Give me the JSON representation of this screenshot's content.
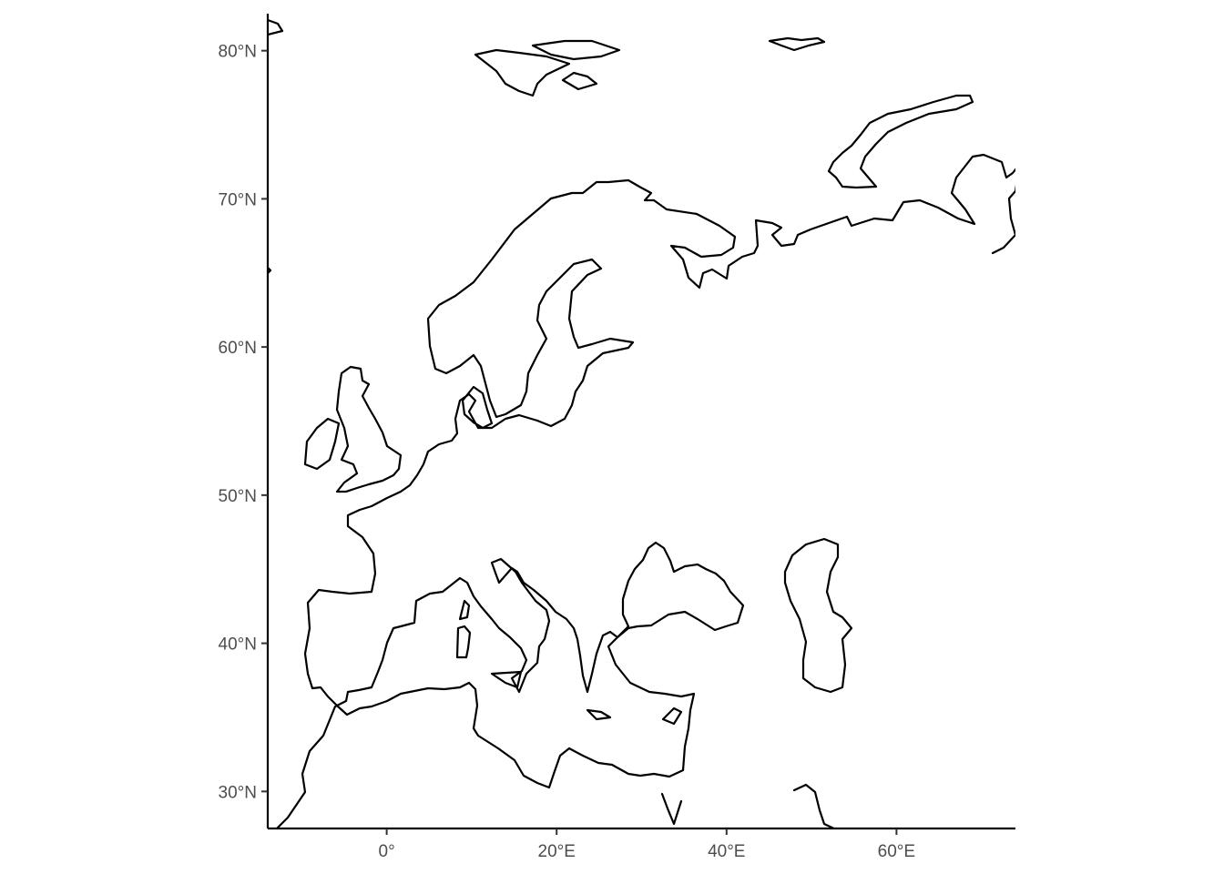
{
  "map": {
    "projection": "equirectangular",
    "coastline_color": "#000000",
    "background": "#ffffff",
    "lon_range": [
      -14.0,
      74.0
    ],
    "lat_range": [
      27.5,
      82.5
    ],
    "x_axis": {
      "ticks": [
        {
          "value": 0,
          "label": "0°"
        },
        {
          "value": 20,
          "label": "20°E"
        },
        {
          "value": 40,
          "label": "40°E"
        },
        {
          "value": 60,
          "label": "60°E"
        }
      ]
    },
    "y_axis": {
      "ticks": [
        {
          "value": 30,
          "label": "30°N"
        },
        {
          "value": 40,
          "label": "40°N"
        },
        {
          "value": 50,
          "label": "50°N"
        },
        {
          "value": 60,
          "label": "60°N"
        },
        {
          "value": 70,
          "label": "70°N"
        },
        {
          "value": 80,
          "label": "80°N"
        }
      ]
    },
    "features": [
      {
        "name": "Europe mainland"
      },
      {
        "name": "Great Britain"
      },
      {
        "name": "Ireland"
      },
      {
        "name": "Denmark"
      },
      {
        "name": "Scandinavian peninsula"
      },
      {
        "name": "Italy"
      },
      {
        "name": "Sicily"
      },
      {
        "name": "Corsica"
      },
      {
        "name": "Sardinia"
      },
      {
        "name": "Crete"
      },
      {
        "name": "Cyprus"
      },
      {
        "name": "Black Sea coast"
      },
      {
        "name": "Caspian Sea coast"
      },
      {
        "name": "North Africa coast"
      },
      {
        "name": "Svalbard"
      },
      {
        "name": "Franz Josef Land"
      },
      {
        "name": "Novaya Zemlya"
      },
      {
        "name": "Yamal coast"
      }
    ]
  }
}
